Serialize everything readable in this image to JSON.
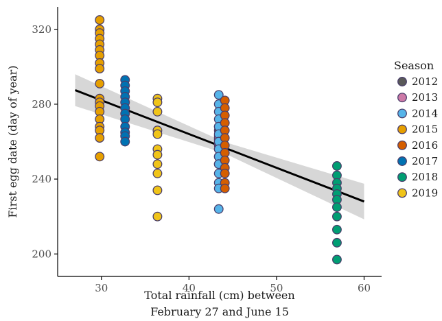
{
  "chart_data": {
    "type": "scatter",
    "xlabel_lines": [
      "Total rainfall (cm) between",
      "February 27 and June 15"
    ],
    "ylabel": "First egg date (day of year)",
    "xlim": [
      25,
      62
    ],
    "ylim": [
      188,
      332
    ],
    "x_ticks": [
      30,
      40,
      50,
      60
    ],
    "y_ticks": [
      200,
      240,
      280,
      320
    ],
    "grid": false,
    "legend": {
      "title": "Season",
      "position": "right"
    },
    "series": [
      {
        "name": "2012",
        "color": "#595959",
        "x": 43.4,
        "values": [
          268,
          266,
          263,
          261,
          258
        ]
      },
      {
        "name": "2013",
        "color": "#cc79a7",
        "x": 43.4,
        "values": [
          262,
          259,
          256,
          252,
          248
        ]
      },
      {
        "name": "2014",
        "color": "#56b4e9",
        "x": 43.4,
        "values": [
          285,
          280,
          276,
          272,
          268,
          264,
          260,
          256,
          252,
          248,
          243,
          238,
          235,
          224
        ]
      },
      {
        "name": "2015",
        "color": "#e69f00",
        "x": 29.8,
        "values": [
          325,
          320,
          318,
          315,
          312,
          309,
          306,
          302,
          299,
          291,
          283,
          281,
          279,
          276,
          272,
          268,
          266,
          262,
          252
        ]
      },
      {
        "name": "2016",
        "color": "#d55e00",
        "x": 44.1,
        "values": [
          282,
          278,
          274,
          270,
          266,
          262,
          258,
          254,
          250,
          246,
          243,
          238,
          235
        ]
      },
      {
        "name": "2017",
        "color": "#0072b2",
        "x": 32.7,
        "values": [
          293,
          290,
          287,
          284,
          281,
          278,
          275,
          272,
          268,
          265,
          263,
          260
        ]
      },
      {
        "name": "2018",
        "color": "#009e73",
        "x": 56.9,
        "values": [
          247,
          242,
          238,
          235,
          232,
          229,
          225,
          220,
          213,
          206,
          197
        ]
      },
      {
        "name": "2019",
        "color": "#f0c419",
        "x": 36.4,
        "values": [
          283,
          281,
          276,
          266,
          264,
          256,
          253,
          248,
          243,
          234,
          220
        ]
      }
    ],
    "trend": {
      "x": [
        27,
        60
      ],
      "y": [
        287.5,
        228
      ],
      "ci_upper": [
        296,
        237
      ],
      "ci_lower": [
        279,
        218
      ],
      "ci_mid_x": 44,
      "ci_mid_halfwidth": 3
    }
  }
}
